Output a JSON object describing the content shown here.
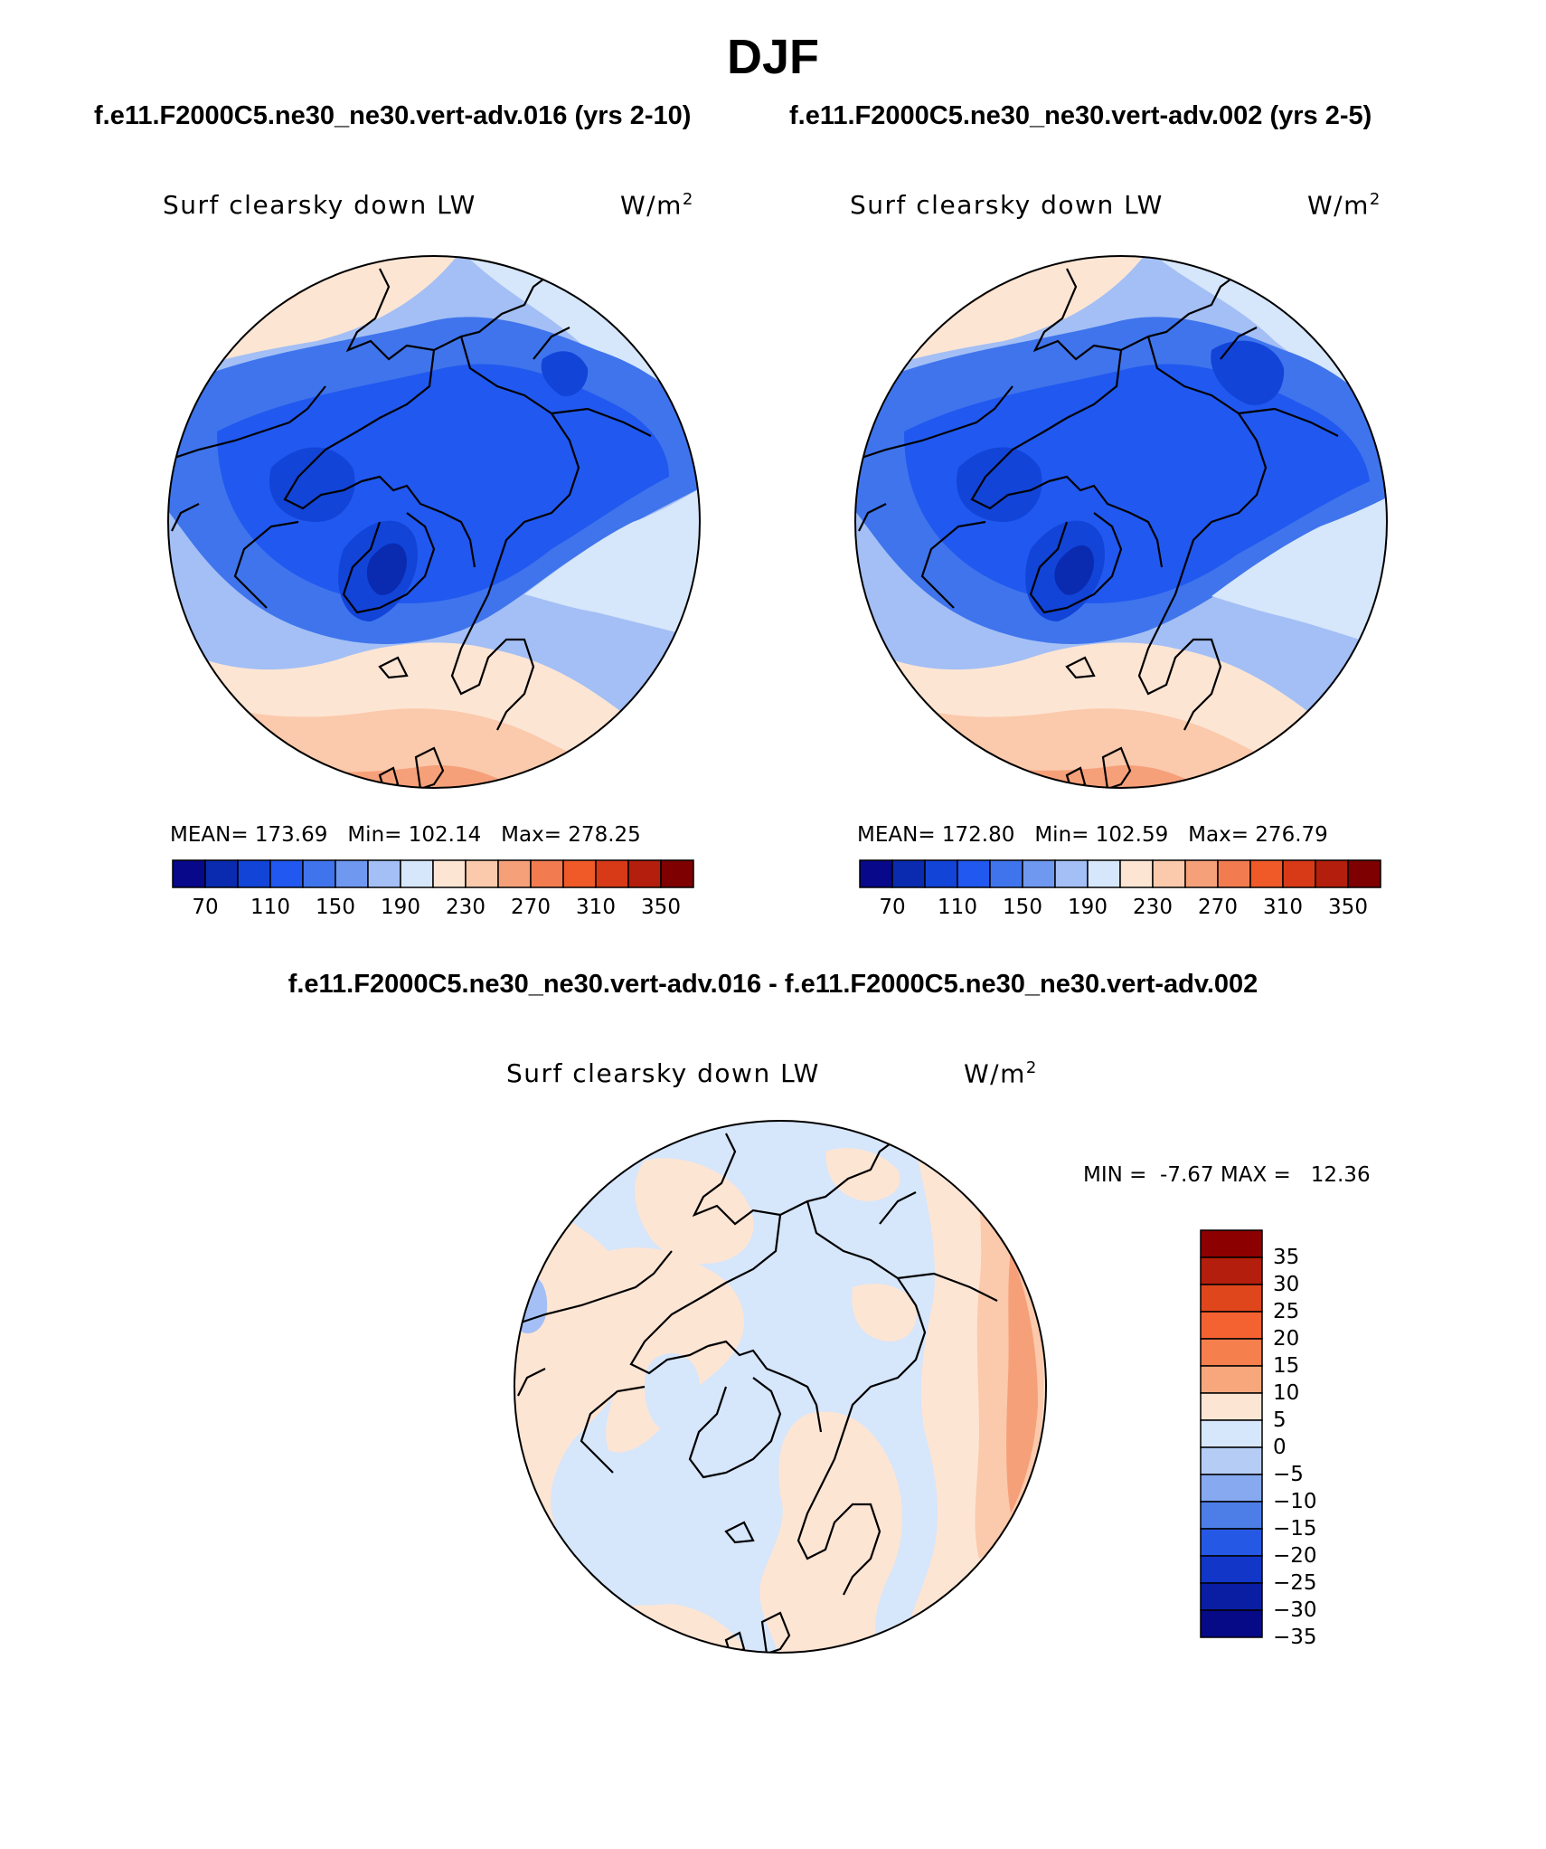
{
  "title": "DJF",
  "panels": {
    "left": {
      "case_title": "f.e11.F2000C5.ne30_ne30.vert-adv.016 (yrs 2-10)",
      "variable": "Surf clearsky down LW",
      "units": "W/m",
      "units_exp": "2",
      "stats": {
        "mean_label": "MEAN=",
        "mean": "173.69",
        "min_label": "Min=",
        "min": "102.14",
        "max_label": "Max=",
        "max": "278.25"
      }
    },
    "right": {
      "case_title": "f.e11.F2000C5.ne30_ne30.vert-adv.002 (yrs 2-5)",
      "variable": "Surf clearsky down LW",
      "units": "W/m",
      "units_exp": "2",
      "stats": {
        "mean_label": "MEAN=",
        "mean": "172.80",
        "min_label": "Min=",
        "min": "102.59",
        "max_label": "Max=",
        "max": "276.79"
      }
    },
    "diff": {
      "case_title": "f.e11.F2000C5.ne30_ne30.vert-adv.016 - f.e11.F2000C5.ne30_ne30.vert-adv.002",
      "variable": "Surf clearsky down LW",
      "units": "W/m",
      "units_exp": "2",
      "stats": {
        "min_label": "MIN =",
        "min": "-7.67",
        "max_label": "MAX =",
        "max": "12.36"
      }
    }
  },
  "colorbars": {
    "absolute": {
      "colors": [
        "#08088a",
        "#0a2bb0",
        "#1244d8",
        "#2158f0",
        "#3f74ec",
        "#6f98f0",
        "#a3bff5",
        "#d6e6fb",
        "#fde5d4",
        "#fbc9ab",
        "#f6a07a",
        "#f27c50",
        "#f05a28",
        "#d83a18",
        "#b41e0c",
        "#7e0000"
      ],
      "tick_labels": [
        "70",
        "110",
        "150",
        "190",
        "230",
        "270",
        "310",
        "350"
      ]
    },
    "difference": {
      "colors_top_to_bottom": [
        "#8c0000",
        "#b41e0c",
        "#e0461c",
        "#f46232",
        "#f67f4e",
        "#f8a77c",
        "#fde5d4",
        "#d6e6fb",
        "#b5cdf5",
        "#86a9ef",
        "#4d7ee8",
        "#2558e4",
        "#1236c8",
        "#0a1ea4",
        "#070a86"
      ],
      "tick_labels": [
        "35",
        "30",
        "25",
        "20",
        "15",
        "10",
        "5",
        "0",
        "−5",
        "−10",
        "−15",
        "−20",
        "−25",
        "−30",
        "−35"
      ]
    }
  },
  "map_legend_note": "",
  "colors": {
    "coastline": "#000000"
  }
}
